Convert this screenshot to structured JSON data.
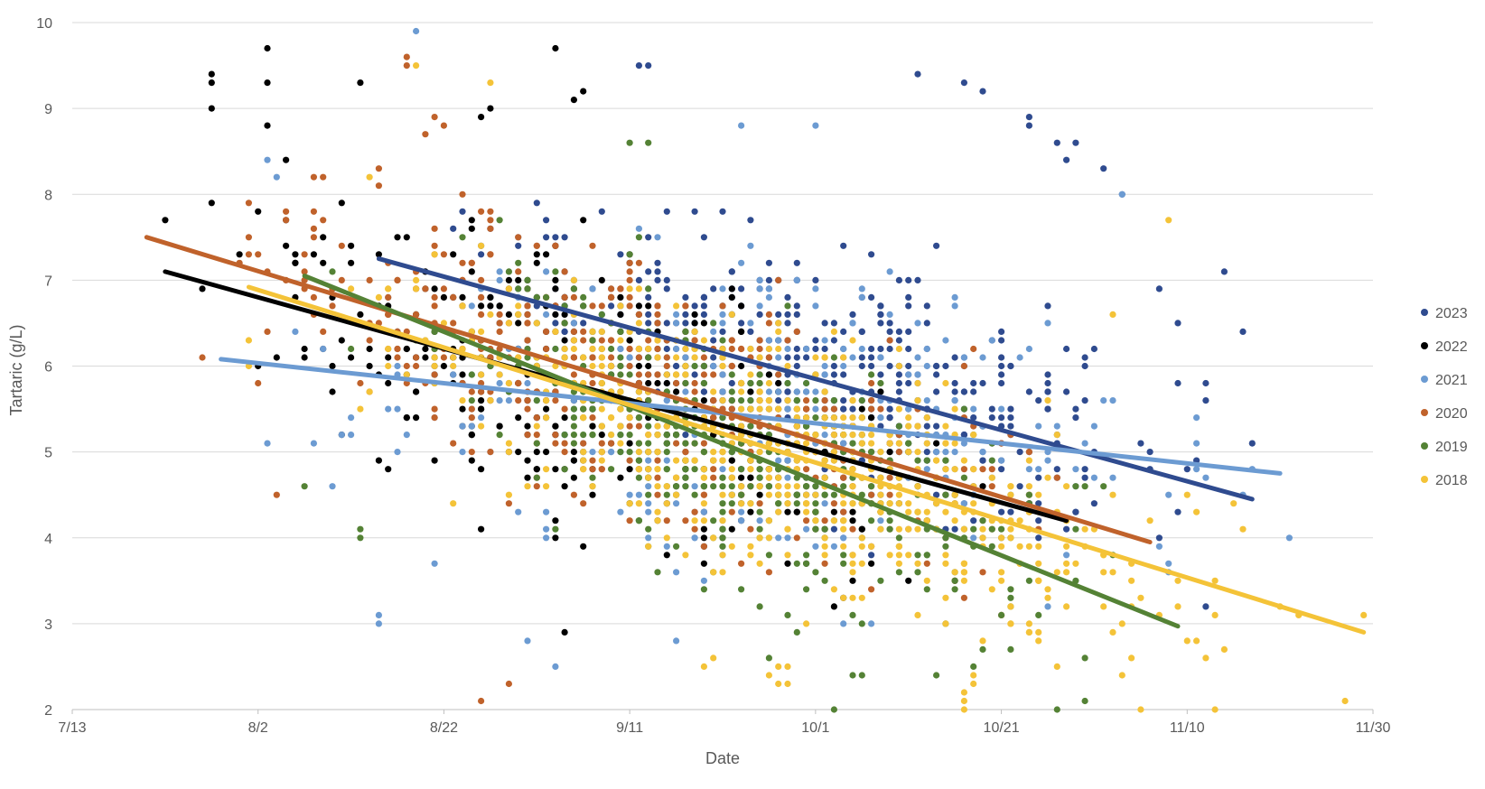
{
  "chart_data": {
    "type": "scatter",
    "title": "",
    "xlabel": "Date",
    "ylabel": "Tartaric (g/L)",
    "x_is_date": true,
    "x_tick_labels": [
      "7/13",
      "8/2",
      "8/22",
      "9/11",
      "10/1",
      "10/21",
      "11/10",
      "11/30"
    ],
    "x_tick_day_offsets": [
      0,
      20,
      40,
      60,
      80,
      100,
      120,
      140
    ],
    "xlim_day_offsets": [
      0,
      140
    ],
    "ylim": [
      2,
      10
    ],
    "y_ticks": [
      2,
      3,
      4,
      5,
      6,
      7,
      8,
      9,
      10
    ],
    "grid": "horizontal",
    "legend_position": "right",
    "series": [
      {
        "name": "2023",
        "color": "#2F4B8F",
        "date_range_day_offsets": [
          33,
          127
        ],
        "trend": [
          [
            33,
            7.25
          ],
          [
            127,
            4.45
          ]
        ],
        "spread": 0.9,
        "count": 450,
        "seed": 11,
        "points": [
          [
            91,
            9.4
          ],
          [
            96,
            9.3
          ],
          [
            98,
            9.2
          ],
          [
            62,
            9.5
          ],
          [
            61,
            9.5
          ],
          [
            103,
            8.9
          ],
          [
            103,
            8.8
          ],
          [
            124,
            7.1
          ],
          [
            126,
            6.4
          ],
          [
            127,
            5.1
          ],
          [
            122,
            3.2
          ],
          [
            117,
            6.9
          ],
          [
            106,
            8.6
          ],
          [
            107,
            8.4
          ],
          [
            108,
            8.6
          ],
          [
            111,
            8.3
          ],
          [
            122,
            5.8
          ],
          [
            122,
            5.6
          ],
          [
            121,
            4.9
          ],
          [
            120,
            4.8
          ],
          [
            119,
            6.5
          ],
          [
            119,
            5.8
          ],
          [
            113,
            8.0
          ]
        ]
      },
      {
        "name": "2022",
        "color": "#000000",
        "date_range_day_offsets": [
          10,
          107
        ],
        "trend": [
          [
            10,
            7.1
          ],
          [
            107,
            4.2
          ]
        ],
        "spread": 0.95,
        "count": 420,
        "seed": 22,
        "points": [
          [
            10,
            7.7
          ],
          [
            15,
            9.4
          ],
          [
            15,
            9.3
          ],
          [
            15,
            9.0
          ],
          [
            21,
            9.7
          ],
          [
            21,
            9.3
          ],
          [
            21,
            8.8
          ],
          [
            23,
            8.4
          ],
          [
            23,
            7.7
          ],
          [
            23,
            7.4
          ],
          [
            29,
            7.9
          ],
          [
            30,
            7.4
          ],
          [
            30,
            7.2
          ],
          [
            31,
            9.3
          ],
          [
            52,
            9.7
          ],
          [
            55,
            9.2
          ],
          [
            54,
            9.1
          ],
          [
            45,
            9.0
          ],
          [
            44,
            8.9
          ],
          [
            53,
            2.9
          ]
        ]
      },
      {
        "name": "2021",
        "color": "#6C9BD2",
        "date_range_day_offsets": [
          16,
          130
        ],
        "trend": [
          [
            16,
            6.08
          ],
          [
            130,
            4.75
          ]
        ],
        "spread": 1.05,
        "count": 400,
        "seed": 33,
        "points": [
          [
            37,
            9.9
          ],
          [
            24,
            6.4
          ],
          [
            22,
            8.2
          ],
          [
            33,
            3.1
          ],
          [
            33,
            3.0
          ],
          [
            28,
            4.6
          ],
          [
            131,
            4.0
          ],
          [
            127,
            4.8
          ],
          [
            126,
            4.5
          ],
          [
            21,
            8.4
          ],
          [
            29,
            5.2
          ],
          [
            65,
            2.8
          ],
          [
            83,
            3.0
          ],
          [
            49,
            2.8
          ],
          [
            52,
            2.5
          ],
          [
            80,
            8.8
          ],
          [
            72,
            8.8
          ],
          [
            118,
            3.7
          ],
          [
            118,
            3.6
          ],
          [
            113,
            8.0
          ],
          [
            121,
            4.8
          ],
          [
            122,
            4.7
          ]
        ]
      },
      {
        "name": "2020",
        "color": "#C0622B",
        "date_range_day_offsets": [
          8,
          116
        ],
        "trend": [
          [
            8,
            7.5
          ],
          [
            116,
            3.95
          ]
        ],
        "spread": 0.95,
        "count": 520,
        "seed": 44,
        "points": [
          [
            19,
            7.9
          ],
          [
            23,
            7.8
          ],
          [
            26,
            8.2
          ],
          [
            22,
            4.5
          ],
          [
            44,
            2.1
          ],
          [
            47,
            2.3
          ],
          [
            36,
            9.5
          ],
          [
            36,
            9.6
          ],
          [
            38,
            8.7
          ],
          [
            39,
            8.9
          ],
          [
            40,
            8.8
          ],
          [
            28,
            6.7
          ]
        ]
      },
      {
        "name": "2019",
        "color": "#548235",
        "date_range_day_offsets": [
          25,
          119
        ],
        "trend": [
          [
            25,
            7.05
          ],
          [
            119,
            2.97
          ]
        ],
        "spread": 0.9,
        "count": 420,
        "seed": 55,
        "points": [
          [
            25,
            4.6
          ],
          [
            31,
            4.1
          ],
          [
            31,
            4.0
          ],
          [
            82,
            2.0
          ],
          [
            106,
            2.0
          ],
          [
            109,
            2.1
          ],
          [
            84,
            2.4
          ],
          [
            85,
            2.4
          ],
          [
            97,
            2.5
          ],
          [
            93,
            2.4
          ],
          [
            75,
            2.6
          ],
          [
            60,
            8.6
          ],
          [
            62,
            8.6
          ]
        ]
      },
      {
        "name": "2018",
        "color": "#F4C338",
        "date_range_day_offsets": [
          19,
          139
        ],
        "trend": [
          [
            19,
            6.92
          ],
          [
            139,
            2.9
          ]
        ],
        "spread": 0.9,
        "count": 560,
        "seed": 66,
        "points": [
          [
            19,
            6.3
          ],
          [
            19,
            6.0
          ],
          [
            139,
            3.1
          ],
          [
            126,
            4.1
          ],
          [
            125,
            4.4
          ],
          [
            130,
            3.2
          ],
          [
            121,
            2.8
          ],
          [
            113,
            2.4
          ],
          [
            96,
            2.0
          ],
          [
            96,
            2.1
          ],
          [
            96,
            2.2
          ],
          [
            77,
            2.3
          ],
          [
            76,
            2.3
          ],
          [
            75,
            2.4
          ],
          [
            76,
            2.5
          ],
          [
            77,
            2.5
          ],
          [
            97,
            2.4
          ],
          [
            68,
            2.5
          ],
          [
            69,
            2.6
          ],
          [
            45,
            9.3
          ],
          [
            37,
            9.5
          ],
          [
            31,
            5.5
          ],
          [
            118,
            7.7
          ],
          [
            120,
            4.5
          ],
          [
            112,
            6.6
          ]
        ]
      }
    ]
  }
}
